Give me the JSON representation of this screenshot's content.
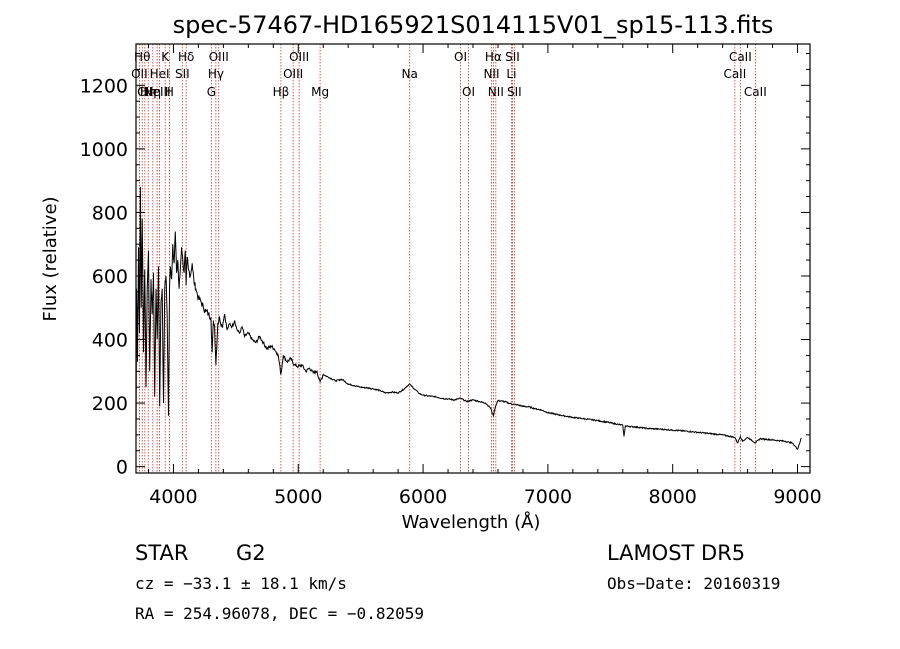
{
  "chart_data": {
    "type": "line",
    "title": "spec-57467-HD165921S014115V01_sp15-113.fits",
    "xlabel": "Wavelength (Å)",
    "ylabel": "Flux (relative)",
    "xlim": [
      3700,
      9100
    ],
    "ylim": [
      -20,
      1330
    ],
    "xticks": [
      4000,
      5000,
      6000,
      7000,
      8000,
      9000
    ],
    "yticks": [
      0,
      200,
      400,
      600,
      800,
      1000,
      1200
    ],
    "grid": false,
    "series": [
      {
        "x": [
          3700,
          3705,
          3712,
          3720,
          3728,
          3735,
          3742,
          3750,
          3760,
          3770,
          3780,
          3790,
          3800,
          3810,
          3820,
          3830,
          3840,
          3850,
          3860,
          3870,
          3880,
          3890,
          3900,
          3910,
          3920,
          3930,
          3940,
          3950,
          3960,
          3968,
          3975,
          3985,
          3995,
          4005,
          4015,
          4025,
          4035,
          4045,
          4055,
          4065,
          4075,
          4085,
          4095,
          4101,
          4110,
          4120,
          4135,
          4150,
          4165,
          4180,
          4200,
          4220,
          4240,
          4260,
          4280,
          4300,
          4310,
          4320,
          4330,
          4340,
          4355,
          4370,
          4390,
          4410,
          4430,
          4450,
          4470,
          4490,
          4510,
          4530,
          4550,
          4570,
          4600,
          4630,
          4660,
          4690,
          4720,
          4750,
          4780,
          4810,
          4840,
          4861,
          4880,
          4910,
          4940,
          4970,
          5000,
          5030,
          5060,
          5090,
          5120,
          5150,
          5175,
          5200,
          5250,
          5300,
          5350,
          5400,
          5450,
          5500,
          5550,
          5600,
          5650,
          5700,
          5750,
          5800,
          5850,
          5890,
          5930,
          5970,
          6000,
          6050,
          6100,
          6150,
          6200,
          6250,
          6300,
          6350,
          6400,
          6450,
          6500,
          6540,
          6563,
          6580,
          6600,
          6650,
          6700,
          6750,
          6800,
          6850,
          6900,
          6950,
          7000,
          7100,
          7200,
          7300,
          7400,
          7500,
          7600,
          7610,
          7620,
          7700,
          7800,
          7900,
          8000,
          8100,
          8200,
          8300,
          8400,
          8498,
          8520,
          8542,
          8560,
          8600,
          8662,
          8700,
          8800,
          8900,
          8960,
          9000,
          9030
        ],
        "y": [
          80,
          560,
          330,
          690,
          420,
          880,
          500,
          780,
          360,
          620,
          250,
          560,
          680,
          300,
          590,
          480,
          610,
          220,
          560,
          400,
          630,
          190,
          520,
          560,
          200,
          560,
          600,
          470,
          160,
          560,
          630,
          590,
          700,
          640,
          740,
          610,
          650,
          560,
          620,
          690,
          650,
          610,
          680,
          570,
          660,
          620,
          600,
          640,
          580,
          560,
          530,
          520,
          500,
          490,
          480,
          470,
          360,
          460,
          440,
          320,
          450,
          470,
          440,
          480,
          430,
          450,
          440,
          460,
          430,
          420,
          440,
          410,
          420,
          400,
          390,
          410,
          390,
          370,
          380,
          370,
          350,
          290,
          350,
          330,
          340,
          320,
          315,
          320,
          300,
          310,
          295,
          300,
          265,
          290,
          280,
          270,
          275,
          260,
          255,
          250,
          248,
          245,
          240,
          232,
          235,
          232,
          245,
          260,
          245,
          230,
          225,
          222,
          220,
          215,
          213,
          210,
          215,
          205,
          210,
          205,
          200,
          185,
          160,
          190,
          208,
          205,
          198,
          195,
          190,
          188,
          182,
          178,
          170,
          162,
          155,
          150,
          145,
          138,
          130,
          95,
          128,
          125,
          120,
          118,
          115,
          112,
          108,
          104,
          100,
          92,
          75,
          95,
          80,
          92,
          75,
          88,
          84,
          80,
          74,
          55,
          90
        ]
      }
    ],
    "spectral_lines": [
      {
        "wave": 3727,
        "label": "OII",
        "row": 2
      },
      {
        "wave": 3750,
        "label": "Hθ",
        "row": 1
      },
      {
        "wave": 3771,
        "label": "CII",
        "row": 3
      },
      {
        "wave": 3798,
        "label": "Hη",
        "row": 3
      },
      {
        "wave": 3835,
        "label": "Hη",
        "row": 3
      },
      {
        "wave": 3869,
        "label": "NeIII",
        "row": 3
      },
      {
        "wave": 3889,
        "label": "HeI",
        "row": 2
      },
      {
        "wave": 3934,
        "label": "K",
        "row": 1
      },
      {
        "wave": 3968,
        "label": "H",
        "row": 3
      },
      {
        "wave": 4071,
        "label": "SII",
        "row": 2
      },
      {
        "wave": 4102,
        "label": "Hδ",
        "row": 1
      },
      {
        "wave": 4304,
        "label": "G",
        "row": 3
      },
      {
        "wave": 4340,
        "label": "Hγ",
        "row": 2
      },
      {
        "wave": 4363,
        "label": "OIII",
        "row": 1
      },
      {
        "wave": 4861,
        "label": "Hβ",
        "row": 3
      },
      {
        "wave": 4959,
        "label": "OIII",
        "row": 2
      },
      {
        "wave": 5007,
        "label": "OIII",
        "row": 1
      },
      {
        "wave": 5175,
        "label": "Mg",
        "row": 3
      },
      {
        "wave": 5893,
        "label": "Na",
        "row": 2
      },
      {
        "wave": 6300,
        "label": "OI",
        "row": 1
      },
      {
        "wave": 6364,
        "label": "OI",
        "row": 3
      },
      {
        "wave": 6548,
        "label": "NII",
        "row": 2
      },
      {
        "wave": 6563,
        "label": "Hα",
        "row": 1
      },
      {
        "wave": 6583,
        "label": "NII",
        "row": 3
      },
      {
        "wave": 6708,
        "label": "Li",
        "row": 2
      },
      {
        "wave": 6716,
        "label": "SII",
        "row": 1
      },
      {
        "wave": 6731,
        "label": "SII",
        "row": 3
      },
      {
        "wave": 8498,
        "label": "CaII",
        "row": 2
      },
      {
        "wave": 8542,
        "label": "CaII",
        "row": 1
      },
      {
        "wave": 8662,
        "label": "CaII",
        "row": 3
      }
    ]
  },
  "info": {
    "object_type": "STAR",
    "subclass": "G2",
    "survey": "LAMOST DR5",
    "redshift_text": "cz = −33.1 ± 18.1 km/s",
    "obs_date": "Obs−Date: 20160319",
    "coords": "RA = 254.96078, DEC =  −0.82059"
  }
}
